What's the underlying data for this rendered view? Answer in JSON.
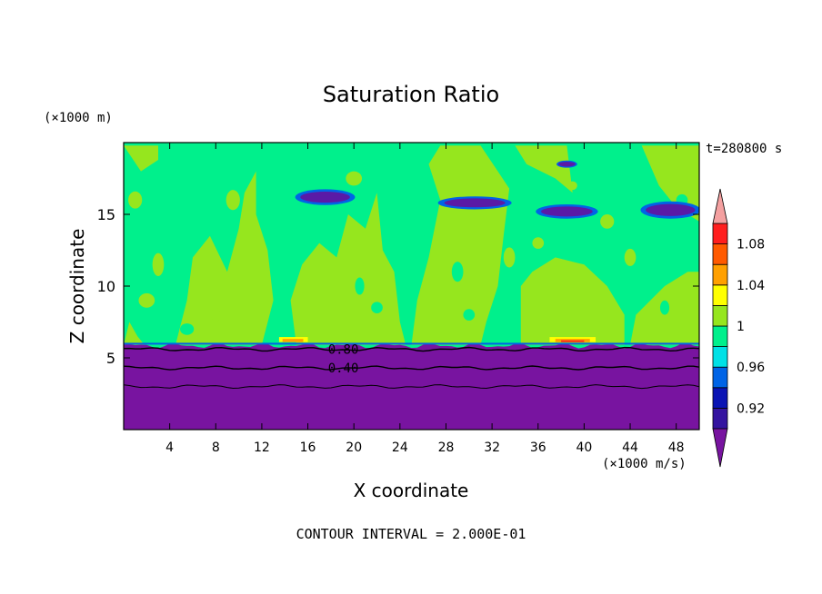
{
  "chart_data": {
    "type": "heatmap",
    "title": "Saturation Ratio",
    "xlabel": "X coordinate",
    "ylabel": "Z coordinate",
    "x_unit": "(×1000 m/s)",
    "y_unit": "(×1000 m)",
    "time_label": "t=280800 s",
    "footer": "CONTOUR INTERVAL = 2.000E-01",
    "xlim": [
      0,
      50
    ],
    "ylim": [
      0,
      20
    ],
    "x_ticks": [
      4,
      8,
      12,
      16,
      20,
      24,
      28,
      32,
      36,
      40,
      44,
      48
    ],
    "y_ticks": [
      5,
      10,
      15
    ],
    "colorbar": {
      "levels": [
        0.9,
        0.92,
        0.94,
        0.96,
        0.98,
        1,
        1.02,
        1.04,
        1.06,
        1.08,
        1.1
      ],
      "labels": [
        "0.92",
        "0.96",
        "1",
        "1.04",
        "1.08"
      ],
      "colors": [
        "#5a1aa6",
        "#3414a0",
        "#0a14b4",
        "#0064e6",
        "#00e1e6",
        "#00f08c",
        "#96e61e",
        "#ffff00",
        "#ffa000",
        "#ff5a00",
        "#ff1e1e",
        "#f4b4b4"
      ],
      "under_color": "#7814a0",
      "over_color": "#f4a0a0"
    },
    "contour_labels": [
      {
        "text": "0.80",
        "x": 17.5,
        "y": 5.6
      },
      {
        "text": "0.40",
        "x": 17.5,
        "y": 4.3
      }
    ],
    "regions": [
      {
        "desc": "subsaturated layer",
        "z_range": [
          0,
          5.8
        ],
        "value": 0.3,
        "color": "#7814a0"
      },
      {
        "desc": "near-saturated background",
        "z_range": [
          5.8,
          20
        ],
        "value": 0.99,
        "color": "#00f08c"
      },
      {
        "desc": "supersaturated columns",
        "value": 1.01,
        "color": "#96e61e"
      },
      {
        "desc": "thin supersaturated patches near z=6",
        "value": 1.06,
        "color": "#ffa000"
      },
      {
        "desc": "dry lenses near z=15-17",
        "value": 0.9,
        "color": "#5a1aa6"
      }
    ]
  }
}
